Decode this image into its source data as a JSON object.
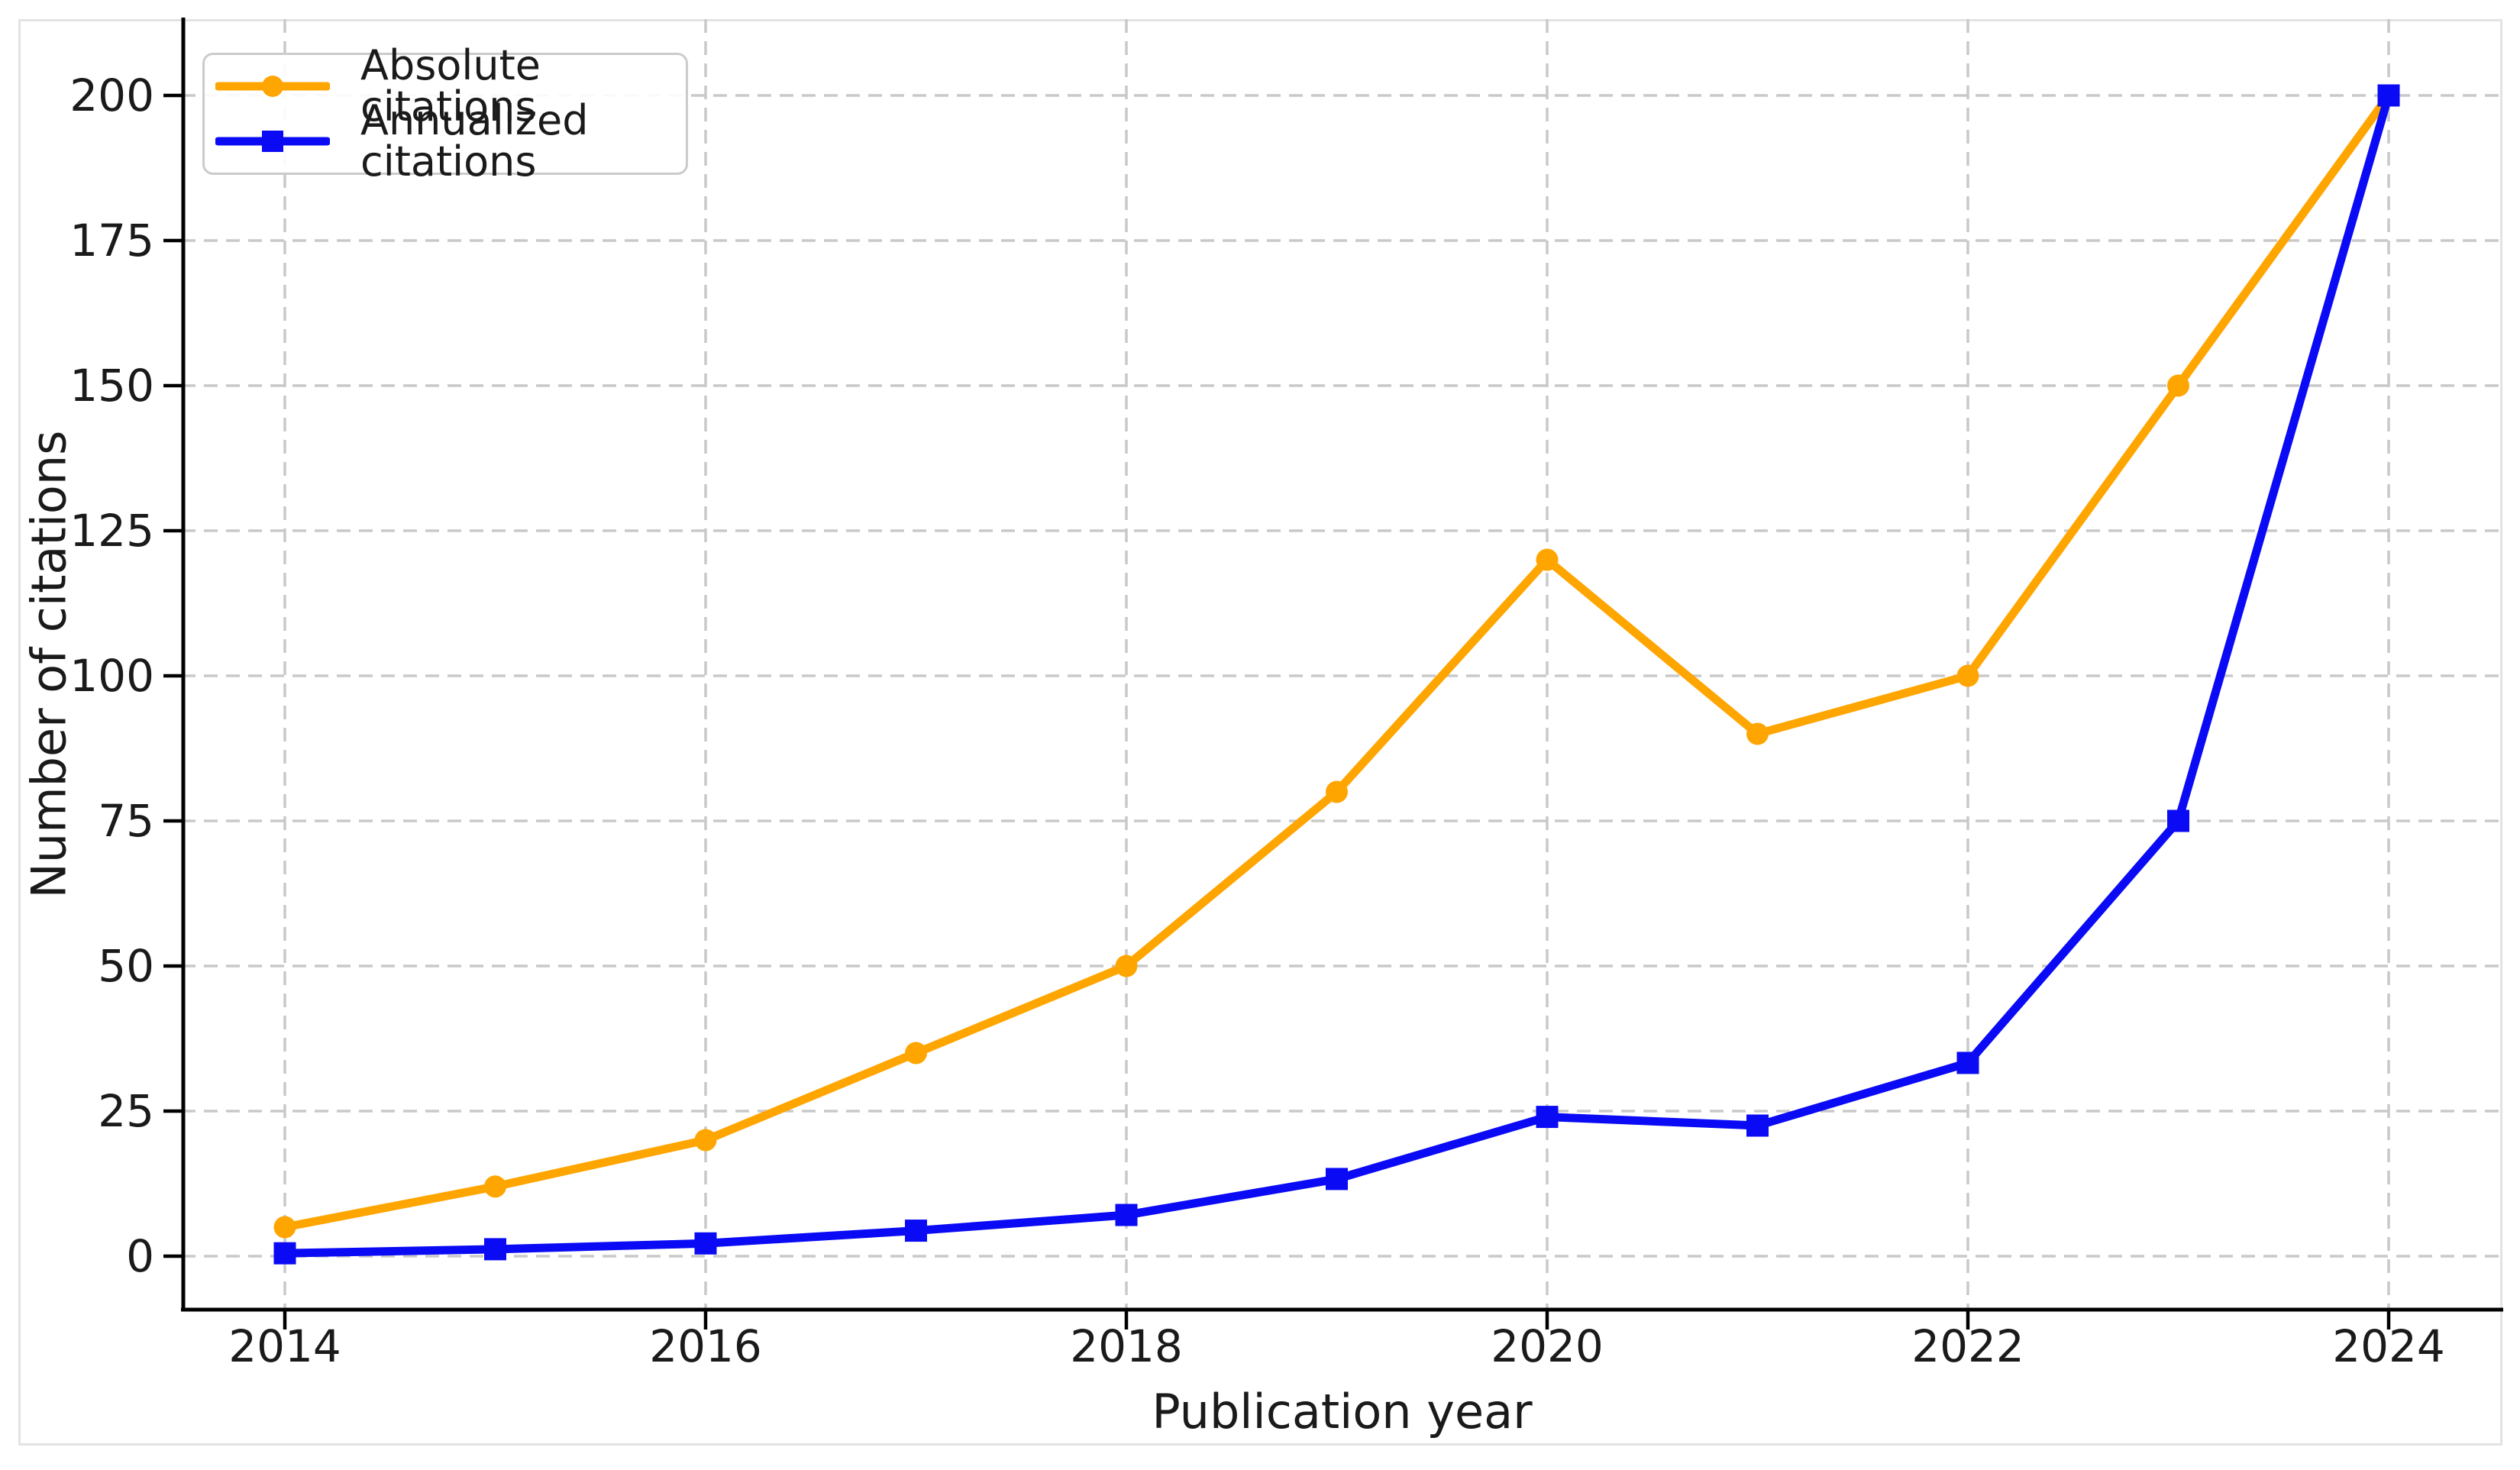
{
  "chart_data": {
    "type": "line",
    "title": "",
    "xlabel": "Publication year",
    "ylabel": "Number of citations",
    "x": [
      2014,
      2015,
      2016,
      2017,
      2018,
      2019,
      2020,
      2021,
      2022,
      2023,
      2024
    ],
    "series": [
      {
        "name": "Absolute citations",
        "color": "#FFA500",
        "marker": "circle",
        "values": [
          5,
          12,
          20,
          35,
          50,
          80,
          120,
          90,
          100,
          150,
          200
        ]
      },
      {
        "name": "Annualized citations",
        "color": "#0A0AF5",
        "marker": "square",
        "values": [
          0.5,
          1.2,
          2.2,
          4.4,
          7.1,
          13.3,
          24,
          22.5,
          33.3,
          75,
          200
        ]
      }
    ],
    "xticks": [
      2014,
      2016,
      2018,
      2020,
      2022,
      2024
    ],
    "yticks": [
      0,
      25,
      50,
      75,
      100,
      125,
      150,
      175,
      200
    ],
    "xlim": [
      2013.5,
      2024.5
    ],
    "ylim": [
      -9,
      213
    ],
    "grid": true,
    "grid_style": "dashed",
    "legend_position": "upper left"
  },
  "legend": {
    "items": [
      {
        "label": "Absolute citations",
        "color": "#FFA500",
        "marker": "circle"
      },
      {
        "label": "Annualized citations",
        "color": "#0A0AF5",
        "marker": "square"
      }
    ]
  },
  "colors": {
    "grid": "#C9C9C9",
    "spine": "#000000",
    "frame": "#E3E3E3",
    "text": "#1A1A1A",
    "background": "#FFFFFF"
  }
}
